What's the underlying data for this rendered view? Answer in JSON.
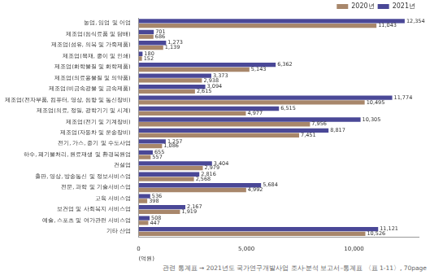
{
  "chart_data": {
    "type": "bar",
    "orientation": "horizontal",
    "categories": [
      "농업, 임업 및 어업",
      "제조업(음식료품 및 담배)",
      "제조업(섬유, 의복 및 가죽제품)",
      "제조업(목재, 종이 및 인쇄)",
      "제조업(화학물질 및 화학제품)",
      "제조업(의료용물질 및 의약품)",
      "제조업(비금속광물 및 금속제품)",
      "제조업(전자부품, 컴퓨터, 영상, 음향 및 통신장비)",
      "제조업(의료, 정밀, 광학기기 및 시계)",
      "제조업(전기 및 기계장비)",
      "제조업(자동차 및 운송장비)",
      "전기, 가스, 증기 및 수도사업",
      "하수, 폐기물처리, 원료재생 및 환경복원업",
      "건설업",
      "출판, 영상, 방송통신 및 정보서비스업",
      "전문, 과학 및 기술서비스업",
      "교육 서비스업",
      "보건업 및 사회복지 서비스업",
      "예술, 스포츠 및 여가관련 서비스업",
      "기타 산업"
    ],
    "series": [
      {
        "name": "2021년",
        "color": "#4a4897",
        "values": [
          12354,
          701,
          1273,
          180,
          6362,
          3373,
          3094,
          11774,
          6515,
          10305,
          8817,
          1257,
          655,
          3404,
          2816,
          5684,
          536,
          2167,
          508,
          11121
        ],
        "value_labels": [
          "12,354",
          "701",
          "1,273",
          "180",
          "6,362",
          "3,373",
          "3,094",
          "11,774",
          "6,515",
          "10,305",
          "8,817",
          "1,257",
          "655",
          "3,404",
          "2,816",
          "5,684",
          "536",
          "2,167",
          "508",
          "11,121"
        ]
      },
      {
        "name": "2020년",
        "color": "#a8876b",
        "values": [
          11043,
          686,
          1139,
          152,
          5143,
          2938,
          2615,
          10495,
          4977,
          7956,
          7451,
          1086,
          557,
          2979,
          2568,
          4992,
          398,
          1919,
          447,
          10526
        ],
        "value_labels": [
          "11,043",
          "686",
          "1,139",
          "152",
          "5,143",
          "2,938",
          "2,615",
          "10,495",
          "4,977",
          "7,956",
          "7,451",
          "1,086",
          "557",
          "2,979",
          "2,568",
          "4,992",
          "398",
          "1,919",
          "447",
          "10,526"
        ]
      }
    ],
    "x_label": "(억원)",
    "xlim": [
      0,
      13000
    ],
    "xticks": [
      0,
      {
        "value": 5000,
        "label": "5,000"
      },
      {
        "value": 10000,
        "label": "10,000"
      }
    ],
    "grid": false,
    "legend": "top-right",
    "data_labels": true,
    "source": "관련 통계표 → 2021년도 국가연구개발사업 조사·분석 보고서–통계표 〈표 1-11〉, 70page"
  }
}
